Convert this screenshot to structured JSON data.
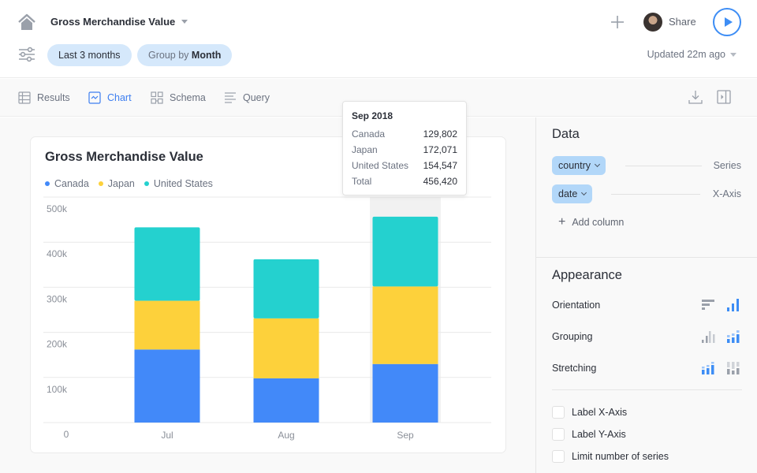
{
  "header": {
    "title": "Gross Merchandise Value",
    "filters": [
      {
        "label": "Last 3 months"
      },
      {
        "prefix": "Group by",
        "value": "Month"
      }
    ],
    "share_label": "Share",
    "updated_label": "Updated 22m ago"
  },
  "tabs": [
    {
      "label": "Results",
      "icon": "table-icon",
      "active": false
    },
    {
      "label": "Chart",
      "icon": "chart-icon",
      "active": true
    },
    {
      "label": "Schema",
      "icon": "schema-icon",
      "active": false
    },
    {
      "label": "Query",
      "icon": "query-icon",
      "active": false
    }
  ],
  "toolbar": {
    "download_icon": "download-icon",
    "panel_toggle_icon": "sidebar-toggle-icon"
  },
  "tooltip": {
    "title": "Sep 2018",
    "rows": [
      {
        "label": "Canada",
        "value": "129,802"
      },
      {
        "label": "Japan",
        "value": "172,071"
      },
      {
        "label": "United States",
        "value": "154,547"
      },
      {
        "label": "Total",
        "value": "456,420"
      }
    ]
  },
  "panel": {
    "data_heading": "Data",
    "columns": [
      {
        "name": "country",
        "role": "Series"
      },
      {
        "name": "date",
        "role": "X-Axis"
      }
    ],
    "add_column_label": "Add column",
    "appearance_heading": "Appearance",
    "options": [
      {
        "label": "Orientation"
      },
      {
        "label": "Grouping"
      },
      {
        "label": "Stretching"
      }
    ],
    "checkboxes": [
      {
        "label": "Label X-Axis",
        "checked": false
      },
      {
        "label": "Label Y-Axis",
        "checked": false
      },
      {
        "label": "Limit number of series",
        "checked": false
      }
    ]
  },
  "colors": {
    "Canada": "#4289f9",
    "Japan": "#fdd13b",
    "United States": "#24d1cf",
    "accent": "#3d8df5"
  },
  "chart_data": {
    "type": "bar",
    "stacked": true,
    "title": "Gross Merchandise Value",
    "categories": [
      "Jul",
      "Aug",
      "Sep"
    ],
    "series": [
      {
        "name": "Canada",
        "values": [
          162000,
          98000,
          129802
        ]
      },
      {
        "name": "Japan",
        "values": [
          108000,
          133000,
          172071
        ]
      },
      {
        "name": "United States",
        "values": [
          163000,
          131000,
          154547
        ]
      }
    ],
    "yticks": [
      0,
      100000,
      200000,
      300000,
      400000,
      500000
    ],
    "ytick_labels": [
      "0",
      "100k",
      "200k",
      "300k",
      "400k",
      "500k"
    ],
    "ylim": [
      0,
      500000
    ],
    "xlabel": "",
    "ylabel": "",
    "grid": true,
    "legend": "top-left",
    "highlighted_category": "Sep"
  }
}
